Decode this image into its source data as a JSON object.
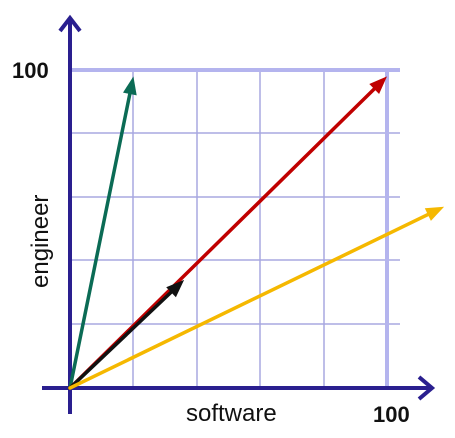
{
  "chart_data": {
    "type": "vector-diagram",
    "xlabel": "software",
    "ylabel": "engineer",
    "x_tick_label": "100",
    "y_tick_label": "100",
    "xlim": [
      0,
      100
    ],
    "ylim": [
      0,
      100
    ],
    "grid": true,
    "vectors": [
      {
        "id": "green",
        "color": "#0b6b55",
        "from": [
          0,
          0
        ],
        "to": [
          20,
          98
        ]
      },
      {
        "id": "red",
        "color": "#c00000",
        "from": [
          0,
          0
        ],
        "to": [
          100,
          98
        ]
      },
      {
        "id": "black",
        "color": "#111111",
        "from": [
          0,
          0
        ],
        "to": [
          36,
          34
        ]
      },
      {
        "id": "yellow",
        "color": "#f5b800",
        "from": [
          0,
          0
        ],
        "to": [
          118,
          57
        ]
      }
    ]
  },
  "colors": {
    "axis": "#2a1f8f",
    "grid": "#a8a8e0",
    "emphasis_line": "#b4b4ee"
  }
}
